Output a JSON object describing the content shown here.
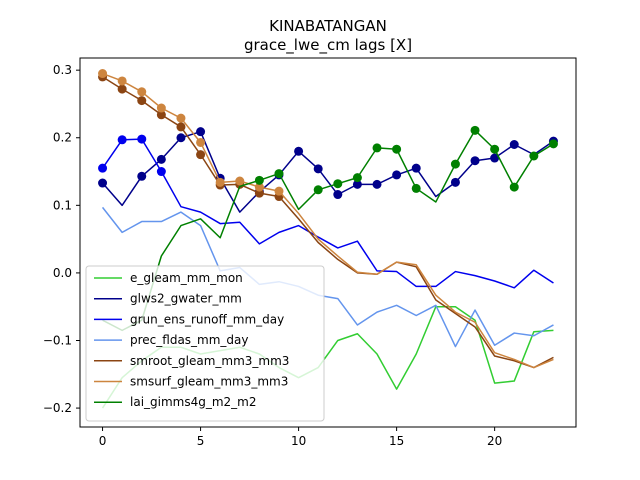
{
  "chart_data": {
    "type": "line",
    "title": "KINABATANGAN",
    "subtitle": "grace_lwe_cm lags [X]",
    "xlabel": "",
    "ylabel": "",
    "xlim": [
      -1.15,
      24.15
    ],
    "ylim": [
      -0.228,
      0.318
    ],
    "xticks": [
      0,
      5,
      10,
      15,
      20
    ],
    "yticks": [
      -0.2,
      -0.1,
      0.0,
      0.1,
      0.2,
      0.3
    ],
    "ytick_labels": [
      "−0.2",
      "−0.1",
      "0.0",
      "0.1",
      "0.2",
      "0.3"
    ],
    "legend_position": "lower-left",
    "x": [
      0,
      1,
      2,
      3,
      4,
      5,
      6,
      7,
      8,
      9,
      10,
      11,
      12,
      13,
      14,
      15,
      16,
      17,
      18,
      19,
      20,
      21,
      22,
      23
    ],
    "series": [
      {
        "name": "e_gleam_mm_mon",
        "color": "#32cd32",
        "values": [
          -0.2,
          -0.155,
          -0.13,
          -0.11,
          -0.11,
          -0.12,
          -0.115,
          -0.11,
          -0.12,
          -0.14,
          -0.155,
          -0.14,
          -0.1,
          -0.09,
          -0.12,
          -0.172,
          -0.12,
          -0.05,
          -0.05,
          -0.07,
          -0.163,
          -0.16,
          -0.087,
          -0.085
        ],
        "markers": []
      },
      {
        "name": "glws2_gwater_mm",
        "color": "#00008b",
        "values": [
          0.133,
          0.1,
          0.143,
          0.168,
          0.2,
          0.209,
          0.14,
          0.09,
          0.12,
          0.145,
          0.18,
          0.154,
          0.116,
          0.131,
          0.131,
          0.145,
          0.155,
          0.113,
          0.134,
          0.166,
          0.17,
          0.19,
          0.175,
          0.195
        ],
        "markers": [
          0,
          2,
          3,
          4,
          5,
          6,
          8,
          9,
          10,
          11,
          12,
          13,
          14,
          15,
          16,
          18,
          19,
          20,
          21,
          23
        ]
      },
      {
        "name": "grun_ens_runoff_mm_day",
        "color": "#0000ee",
        "values": [
          0.155,
          0.197,
          0.198,
          0.15,
          0.098,
          0.09,
          0.073,
          0.075,
          0.043,
          0.06,
          0.07,
          0.053,
          0.037,
          0.047,
          0.003,
          0.002,
          -0.02,
          -0.02,
          0.002,
          -0.004,
          -0.012,
          -0.022,
          0.004,
          -0.015
        ],
        "markers": [
          0,
          1,
          2,
          3
        ]
      },
      {
        "name": "prec_fldas_mm_day",
        "color": "#6495ed",
        "values": [
          0.097,
          0.06,
          0.076,
          0.076,
          0.09,
          0.07,
          0.003,
          0.008,
          -0.017,
          -0.013,
          -0.02,
          -0.033,
          -0.038,
          -0.077,
          -0.058,
          -0.048,
          -0.063,
          -0.048,
          -0.109,
          -0.055,
          -0.107,
          -0.089,
          -0.093,
          -0.077
        ],
        "markers": []
      },
      {
        "name": "smroot_gleam_mm3_mm3",
        "color": "#8b4513",
        "values": [
          0.29,
          0.272,
          0.255,
          0.234,
          0.216,
          0.175,
          0.13,
          0.131,
          0.118,
          0.113,
          0.08,
          0.045,
          0.02,
          0.0,
          -0.002,
          0.016,
          0.009,
          -0.04,
          -0.06,
          -0.08,
          -0.123,
          -0.13,
          -0.14,
          -0.125
        ],
        "markers": [
          0,
          1,
          2,
          3,
          4,
          5,
          6,
          7,
          8,
          9
        ]
      },
      {
        "name": "smsurf_gleam_mm3_mm3",
        "color": "#cd853f",
        "values": [
          0.295,
          0.284,
          0.268,
          0.244,
          0.229,
          0.193,
          0.134,
          0.136,
          0.127,
          0.121,
          0.088,
          0.05,
          0.025,
          0.001,
          -0.002,
          0.016,
          0.012,
          -0.033,
          -0.058,
          -0.073,
          -0.118,
          -0.128,
          -0.14,
          -0.128
        ],
        "markers": [
          0,
          1,
          2,
          3,
          4,
          5,
          6,
          7,
          8,
          9
        ]
      },
      {
        "name": "lai_gimms4g_m2_m2",
        "color": "#008000",
        "values": [
          -0.07,
          -0.085,
          -0.07,
          0.025,
          0.07,
          0.08,
          0.052,
          0.128,
          0.137,
          0.147,
          0.094,
          0.123,
          0.132,
          0.141,
          0.185,
          0.183,
          0.125,
          0.105,
          0.161,
          0.211,
          0.183,
          0.127,
          0.173,
          0.191
        ],
        "markers": [
          8,
          9,
          11,
          12,
          13,
          14,
          15,
          16,
          18,
          19,
          20,
          21,
          22,
          23
        ]
      }
    ]
  }
}
